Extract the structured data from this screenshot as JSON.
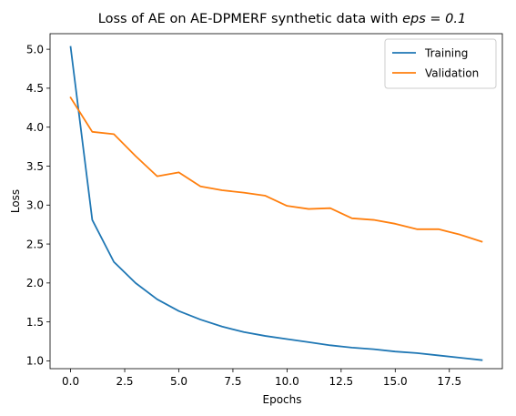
{
  "chart_data": {
    "type": "line",
    "title": "Loss of AE on AE-DPMERF synthetic data with ",
    "title_math": "eps = 0.1",
    "xlabel": "Epochs",
    "ylabel": "Loss",
    "xlim": [
      -0.95,
      19.95
    ],
    "ylim": [
      0.9,
      5.2
    ],
    "xticks": [
      0.0,
      2.5,
      5.0,
      7.5,
      10.0,
      12.5,
      15.0,
      17.5
    ],
    "xtick_labels": [
      "0.0",
      "2.5",
      "5.0",
      "7.5",
      "10.0",
      "12.5",
      "15.0",
      "17.5"
    ],
    "yticks": [
      1.0,
      1.5,
      2.0,
      2.5,
      3.0,
      3.5,
      4.0,
      4.5,
      5.0
    ],
    "ytick_labels": [
      "1.0",
      "1.5",
      "2.0",
      "2.5",
      "3.0",
      "3.5",
      "4.0",
      "4.5",
      "5.0"
    ],
    "grid": false,
    "legend_position": "top-right",
    "x": [
      0,
      1,
      2,
      3,
      4,
      5,
      6,
      7,
      8,
      9,
      10,
      11,
      12,
      13,
      14,
      15,
      16,
      17,
      18,
      19
    ],
    "series": [
      {
        "name": "Training",
        "color": "#1f77b4",
        "values": [
          5.03,
          2.81,
          2.27,
          2.0,
          1.79,
          1.64,
          1.53,
          1.44,
          1.37,
          1.32,
          1.28,
          1.24,
          1.2,
          1.17,
          1.15,
          1.12,
          1.1,
          1.07,
          1.04,
          1.01
        ]
      },
      {
        "name": "Validation",
        "color": "#ff7f0e",
        "values": [
          4.38,
          3.94,
          3.91,
          3.63,
          3.37,
          3.42,
          3.24,
          3.19,
          3.16,
          3.12,
          2.99,
          2.95,
          2.96,
          2.83,
          2.81,
          2.76,
          2.69,
          2.69,
          2.62,
          2.53
        ]
      }
    ]
  }
}
